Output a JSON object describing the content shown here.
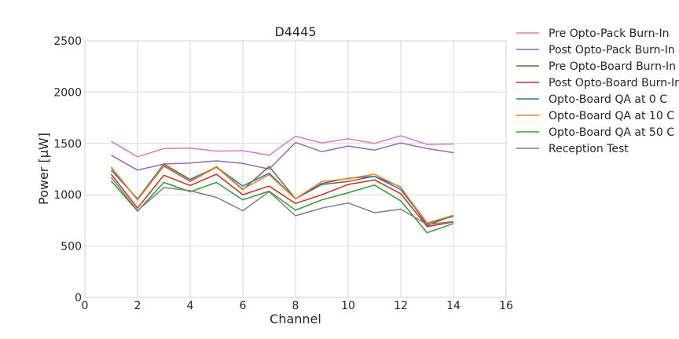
{
  "chart_data": {
    "type": "line",
    "title": "D4445",
    "xlabel": "Channel",
    "ylabel": "Power [μW]",
    "xlim": [
      0,
      16
    ],
    "ylim": [
      0,
      2500
    ],
    "xticks": [
      0,
      2,
      4,
      6,
      8,
      10,
      12,
      14,
      16
    ],
    "yticks": [
      0,
      500,
      1000,
      1500,
      2000,
      2500
    ],
    "grid": true,
    "legend": "outside-right",
    "x": [
      1,
      2,
      3,
      4,
      5,
      6,
      7,
      8,
      9,
      10,
      11,
      12,
      13,
      14
    ],
    "series": [
      {
        "name": "Pre Opto-Pack Burn-In",
        "color": "#e377c2",
        "values": [
          1520,
          1370,
          1450,
          1455,
          1425,
          1430,
          1385,
          1570,
          1505,
          1545,
          1500,
          1575,
          1490,
          1495
        ]
      },
      {
        "name": "Post Opto-Pack Burn-In",
        "color": "#9467bd",
        "values": [
          1385,
          1240,
          1300,
          1310,
          1330,
          1305,
          1250,
          1510,
          1420,
          1475,
          1435,
          1505,
          1450,
          1410
        ]
      },
      {
        "name": "Pre Opto-Board Burn-In",
        "color": "#8c564b",
        "values": [
          1265,
          950,
          1280,
          1130,
          1270,
          1050,
          1275,
          960,
          1100,
          1130,
          1180,
          1075,
          700,
          800
        ]
      },
      {
        "name": "Post Opto-Board Burn-In",
        "color": "#d62728",
        "values": [
          1200,
          870,
          1190,
          1090,
          1200,
          1000,
          1085,
          915,
          1000,
          1100,
          1145,
          1010,
          690,
          735
        ]
      },
      {
        "name": "Opto-Board QA at 0 C",
        "color": "#1f77b4",
        "values": [
          1240,
          960,
          1300,
          1150,
          1270,
          1085,
          1210,
          960,
          1110,
          1160,
          1180,
          1050,
          720,
          790
        ]
      },
      {
        "name": "Opto-Board QA at 10 C",
        "color": "#ff7f0e",
        "values": [
          1270,
          950,
          1290,
          1135,
          1275,
          1055,
          1195,
          960,
          1130,
          1155,
          1200,
          1070,
          725,
          800
        ]
      },
      {
        "name": "Opto-Board QA at 50 C",
        "color": "#2ca02c",
        "values": [
          1135,
          840,
          1120,
          1030,
          1120,
          950,
          1035,
          850,
          950,
          1020,
          1095,
          940,
          630,
          720
        ]
      },
      {
        "name": "Reception Test",
        "color": "#7f7f7f",
        "values": [
          1170,
          845,
          1070,
          1040,
          975,
          845,
          1030,
          795,
          870,
          920,
          825,
          860,
          710,
          740
        ]
      }
    ]
  }
}
